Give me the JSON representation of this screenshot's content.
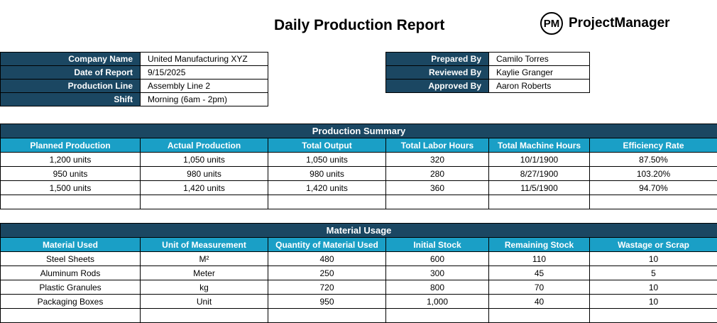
{
  "title": "Daily Production Report",
  "logo": {
    "mark": "PM",
    "name": "ProjectManager"
  },
  "info_left": [
    {
      "label": "Company Name",
      "value": "United Manufacturing XYZ"
    },
    {
      "label": "Date of Report",
      "value": "9/15/2025"
    },
    {
      "label": "Production Line",
      "value": "Assembly Line 2"
    },
    {
      "label": "Shift",
      "value": "Morning (6am - 2pm)"
    }
  ],
  "info_right": [
    {
      "label": "Prepared By",
      "value": "Camilo Torres"
    },
    {
      "label": "Reviewed By",
      "value": "Kaylie Granger"
    },
    {
      "label": "Approved By",
      "value": "Aaron Roberts"
    }
  ],
  "production_summary": {
    "title": "Production Summary",
    "headers": [
      "Planned Production",
      "Actual Production",
      "Total Output",
      "Total Labor Hours",
      "Total Machine Hours",
      "Efficiency Rate"
    ],
    "rows": [
      [
        "1,200 units",
        "1,050 units",
        "1,050 units",
        "320",
        "10/1/1900",
        "87.50%"
      ],
      [
        "950 units",
        "980 units",
        "980 units",
        "280",
        "8/27/1900",
        "103.20%"
      ],
      [
        "1,500 units",
        "1,420 units",
        "1,420 units",
        "360",
        "11/5/1900",
        "94.70%"
      ],
      [
        "",
        "",
        "",
        "",
        "",
        ""
      ]
    ]
  },
  "material_usage": {
    "title": "Material Usage",
    "headers": [
      "Material Used",
      "Unit of Measurement",
      "Quantity of Material Used",
      "Initial Stock",
      "Remaining Stock",
      "Wastage or Scrap"
    ],
    "rows": [
      [
        "Steel Sheets",
        "M²",
        "480",
        "600",
        "110",
        "10"
      ],
      [
        "Aluminum Rods",
        "Meter",
        "250",
        "300",
        "45",
        "5"
      ],
      [
        "Plastic Granules",
        "kg",
        "720",
        "800",
        "70",
        "10"
      ],
      [
        "Packaging Boxes",
        "Unit",
        "950",
        "1,000",
        "40",
        "10"
      ],
      [
        "",
        "",
        "",
        "",
        "",
        ""
      ]
    ]
  }
}
